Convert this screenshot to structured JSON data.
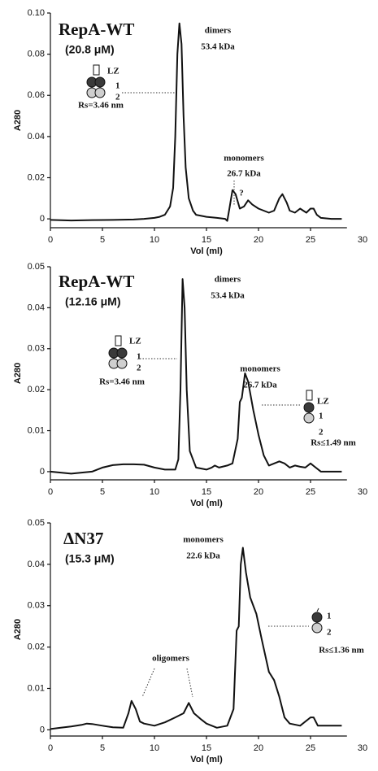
{
  "chart_data": [
    {
      "type": "line",
      "title": "RepA-WT",
      "subtitle": "(20.8 μM)",
      "xlabel": "Vol (ml)",
      "ylabel": "A280",
      "x": [
        0,
        2,
        4,
        6,
        8,
        9,
        10,
        10.5,
        11,
        11.5,
        11.8,
        12,
        12.2,
        12.4,
        12.6,
        12.8,
        13,
        13.3,
        13.7,
        14,
        15,
        16,
        16.8,
        17,
        17.2,
        17.5,
        17.8,
        18.2,
        18.6,
        19,
        19.4,
        20,
        21,
        21.5,
        22,
        22.3,
        22.7,
        23,
        23.5,
        24,
        24.3,
        24.6,
        25,
        25.3,
        25.6,
        26,
        27,
        28
      ],
      "series": [
        {
          "color": "#111111",
          "values": [
            -0.0005,
            -0.0008,
            -0.0006,
            -0.0005,
            -0.0003,
            0,
            0.0005,
            0.001,
            0.002,
            0.006,
            0.015,
            0.04,
            0.08,
            0.095,
            0.085,
            0.05,
            0.025,
            0.01,
            0.004,
            0.002,
            0.001,
            0.0005,
            0,
            -0.001,
            0.005,
            0.014,
            0.012,
            0.005,
            0.006,
            0.009,
            0.007,
            0.005,
            0.003,
            0.004,
            0.01,
            0.012,
            0.008,
            0.004,
            0.003,
            0.005,
            0.004,
            0.003,
            0.005,
            0.005,
            0.002,
            0.0005,
            0,
            0
          ]
        }
      ],
      "xlim": [
        0,
        30
      ],
      "xticks": [
        0,
        5,
        10,
        15,
        20,
        25,
        30
      ],
      "ylim": [
        -0.0043,
        0.1
      ],
      "yticks": [
        0,
        0.02,
        0.04,
        0.06,
        0.08,
        {
          "value": 0.1,
          "label": "0.10"
        }
      ],
      "annotations": [
        "dimers",
        "53.4 kDa",
        "Rs=3.46 nm",
        "monomers",
        "26.7 kDa",
        "?",
        "LZ",
        "1",
        "2"
      ]
    },
    {
      "type": "line",
      "title": "RepA-WT",
      "subtitle": "(12.16 μM)",
      "xlabel": "Vol (ml)",
      "ylabel": "A280",
      "x": [
        0,
        2,
        4,
        5,
        6,
        7,
        8,
        9,
        10,
        11,
        12,
        12.3,
        12.5,
        12.7,
        12.9,
        13.1,
        13.4,
        14,
        15,
        15.5,
        15.8,
        16.2,
        17,
        17.5,
        18,
        18.2,
        18.4,
        18.7,
        19,
        19.5,
        20,
        20.5,
        21,
        22,
        22.5,
        23,
        23.5,
        24,
        24.5,
        25,
        25.4,
        26,
        28
      ],
      "series": [
        {
          "color": "#111111",
          "values": [
            0,
            -0.0005,
            0,
            0.001,
            0.0016,
            0.0018,
            0.0018,
            0.0017,
            0.001,
            0.0005,
            0.0005,
            0.003,
            0.02,
            0.047,
            0.04,
            0.02,
            0.005,
            0.001,
            0.0005,
            0.001,
            0.0015,
            0.001,
            0.0015,
            0.002,
            0.008,
            0.017,
            0.018,
            0.024,
            0.022,
            0.015,
            0.009,
            0.004,
            0.0015,
            0.0025,
            0.002,
            0.001,
            0.0015,
            0.0012,
            0.001,
            0.002,
            0.0012,
            0,
            0
          ]
        }
      ],
      "xlim": [
        0,
        30
      ],
      "xticks": [
        0,
        5,
        10,
        15,
        20,
        25,
        30
      ],
      "ylim": [
        -0.002,
        0.05
      ],
      "yticks": [
        0,
        0.01,
        0.02,
        0.03,
        0.04,
        0.05
      ],
      "annotations": [
        "dimers",
        "53.4 kDa",
        "Rs=3.46 nm",
        "monomers",
        "26.7 kDa",
        "LZ",
        "1",
        "2",
        "Rs≤1.49 nm",
        "LZ",
        "1",
        "2"
      ]
    },
    {
      "type": "line",
      "title": "ΔN37",
      "subtitle": "(15.3 μM)",
      "xlabel": "Vol (ml)",
      "ylabel": "A280",
      "x": [
        0,
        1,
        2,
        3,
        3.5,
        4,
        5,
        6,
        7,
        7.5,
        7.8,
        8.2,
        8.6,
        9,
        10,
        11,
        12,
        12.8,
        13.3,
        13.8,
        14.5,
        15,
        16,
        17,
        17.6,
        17.9,
        18.1,
        18.3,
        18.5,
        18.8,
        19.2,
        19.8,
        20.3,
        21,
        21.5,
        22,
        22.5,
        23,
        24,
        25,
        25.3,
        25.7,
        26,
        28
      ],
      "series": [
        {
          "color": "#111111",
          "values": [
            0.0002,
            0.0005,
            0.0008,
            0.0012,
            0.0015,
            0.0014,
            0.001,
            0.0006,
            0.0005,
            0.004,
            0.007,
            0.005,
            0.002,
            0.0015,
            0.001,
            0.0018,
            0.003,
            0.004,
            0.0065,
            0.004,
            0.0025,
            0.0015,
            0.0005,
            0.001,
            0.005,
            0.024,
            0.025,
            0.04,
            0.044,
            0.038,
            0.032,
            0.028,
            0.022,
            0.014,
            0.012,
            0.008,
            0.003,
            0.0015,
            0.001,
            0.003,
            0.003,
            0.001,
            0.001,
            0.001
          ]
        }
      ],
      "xlim": [
        0,
        30
      ],
      "xticks": [
        0,
        5,
        10,
        15,
        20,
        25,
        30
      ],
      "ylim": [
        -0.0015,
        0.05
      ],
      "yticks": [
        0,
        0.01,
        0.02,
        0.03,
        0.04,
        0.05
      ],
      "annotations": [
        "monomers",
        "22.6 kDa",
        "Rs≤1.36 nm",
        "oligomers",
        "1",
        "2"
      ]
    }
  ]
}
